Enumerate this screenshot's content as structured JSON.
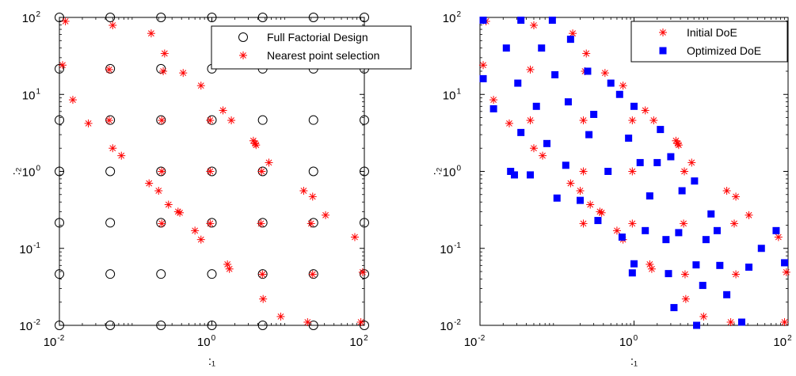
{
  "chart_data": [
    {
      "type": "scatter",
      "xscale": "log",
      "yscale": "log",
      "xlim": [
        0.01,
        100
      ],
      "ylim": [
        0.01,
        100
      ],
      "xlabel": ":₁",
      "ylabel": ":₂",
      "xticks": [
        {
          "base": "10",
          "exp": "-2"
        },
        {
          "base": "10",
          "exp": "0"
        },
        {
          "base": "10",
          "exp": "2"
        }
      ],
      "yticks": [
        {
          "base": "10",
          "exp": "-2"
        },
        {
          "base": "10",
          "exp": "-1"
        },
        {
          "base": "10",
          "exp": "0"
        },
        {
          "base": "10",
          "exp": "1"
        },
        {
          "base": "10",
          "exp": "2"
        }
      ],
      "legend_position": "top-right",
      "series": [
        {
          "name": "Full Factorial Design",
          "marker": "circle",
          "color": "#000000",
          "x": [
            0.01,
            0.0464,
            0.215,
            1.0,
            4.64,
            21.5,
            100
          ],
          "y": [
            0.01,
            0.0464,
            0.215,
            1.0,
            4.64,
            21.5,
            100
          ],
          "grid": true
        },
        {
          "name": "Nearest point selection",
          "marker": "asterisk",
          "color": "#ff0000",
          "points": [
            [
              0.012,
              89
            ],
            [
              0.05,
              79
            ],
            [
              0.16,
              62
            ],
            [
              0.24,
              34
            ],
            [
              0.011,
              24
            ],
            [
              0.045,
              21
            ],
            [
              0.23,
              20
            ],
            [
              0.42,
              19
            ],
            [
              0.72,
              13
            ],
            [
              0.015,
              8.5
            ],
            [
              1.4,
              6.2
            ],
            [
              0.024,
              4.2
            ],
            [
              0.045,
              4.6
            ],
            [
              0.22,
              4.6
            ],
            [
              0.95,
              4.6
            ],
            [
              1.8,
              4.6
            ],
            [
              3.5,
              2.5
            ],
            [
              3.7,
              2.3
            ],
            [
              3.8,
              2.2
            ],
            [
              5.6,
              1.3
            ],
            [
              0.05,
              2.0
            ],
            [
              0.065,
              1.6
            ],
            [
              0.22,
              1.0
            ],
            [
              0.95,
              1.0
            ],
            [
              4.5,
              1.0
            ],
            [
              0.15,
              0.7
            ],
            [
              0.2,
              0.56
            ],
            [
              0.27,
              0.37
            ],
            [
              0.36,
              0.3
            ],
            [
              0.38,
              0.29
            ],
            [
              0.95,
              0.21
            ],
            [
              0.22,
              0.21
            ],
            [
              4.4,
              0.21
            ],
            [
              20,
              0.21
            ],
            [
              16,
              0.56
            ],
            [
              21,
              0.47
            ],
            [
              31,
              0.27
            ],
            [
              0.6,
              0.17
            ],
            [
              0.72,
              0.13
            ],
            [
              1.6,
              0.062
            ],
            [
              1.7,
              0.054
            ],
            [
              4.6,
              0.046
            ],
            [
              21,
              0.046
            ],
            [
              4.7,
              0.022
            ],
            [
              8,
              0.013
            ],
            [
              18,
              0.011
            ],
            [
              90,
              0.011
            ],
            [
              75,
              0.14
            ],
            [
              95,
              0.049
            ]
          ]
        }
      ]
    },
    {
      "type": "scatter",
      "xscale": "log",
      "yscale": "log",
      "xlim": [
        0.01,
        100
      ],
      "ylim": [
        0.01,
        100
      ],
      "xlabel": ":₁",
      "ylabel": ":₂",
      "xticks": [
        {
          "base": "10",
          "exp": "-2"
        },
        {
          "base": "10",
          "exp": "0"
        },
        {
          "base": "10",
          "exp": "2"
        }
      ],
      "yticks": [
        {
          "base": "10",
          "exp": "-2"
        },
        {
          "base": "10",
          "exp": "-1"
        },
        {
          "base": "10",
          "exp": "0"
        },
        {
          "base": "10",
          "exp": "1"
        },
        {
          "base": "10",
          "exp": "2"
        }
      ],
      "legend_position": "top-right",
      "series": [
        {
          "name": "Initial DoE",
          "marker": "asterisk",
          "color": "#ff0000",
          "points": [
            [
              0.012,
              89
            ],
            [
              0.05,
              79
            ],
            [
              0.16,
              62
            ],
            [
              0.24,
              34
            ],
            [
              0.011,
              24
            ],
            [
              0.045,
              21
            ],
            [
              0.23,
              20
            ],
            [
              0.42,
              19
            ],
            [
              0.72,
              13
            ],
            [
              0.015,
              8.5
            ],
            [
              1.4,
              6.2
            ],
            [
              0.024,
              4.2
            ],
            [
              0.045,
              4.6
            ],
            [
              0.22,
              4.6
            ],
            [
              0.95,
              4.6
            ],
            [
              1.8,
              4.6
            ],
            [
              3.5,
              2.5
            ],
            [
              3.7,
              2.3
            ],
            [
              3.8,
              2.2
            ],
            [
              5.6,
              1.3
            ],
            [
              0.05,
              2.0
            ],
            [
              0.065,
              1.6
            ],
            [
              0.22,
              1.0
            ],
            [
              0.95,
              1.0
            ],
            [
              4.5,
              1.0
            ],
            [
              0.15,
              0.7
            ],
            [
              0.2,
              0.56
            ],
            [
              0.27,
              0.37
            ],
            [
              0.36,
              0.3
            ],
            [
              0.38,
              0.29
            ],
            [
              0.95,
              0.21
            ],
            [
              0.22,
              0.21
            ],
            [
              4.4,
              0.21
            ],
            [
              20,
              0.21
            ],
            [
              16,
              0.56
            ],
            [
              21,
              0.47
            ],
            [
              31,
              0.27
            ],
            [
              0.6,
              0.17
            ],
            [
              0.72,
              0.13
            ],
            [
              1.6,
              0.062
            ],
            [
              1.7,
              0.054
            ],
            [
              4.6,
              0.046
            ],
            [
              21,
              0.046
            ],
            [
              4.7,
              0.022
            ],
            [
              8,
              0.013
            ],
            [
              18,
              0.011
            ],
            [
              90,
              0.011
            ],
            [
              75,
              0.14
            ],
            [
              95,
              0.049
            ]
          ]
        },
        {
          "name": "Optimized DoE",
          "marker": "square",
          "color": "#0000ff",
          "points": [
            [
              0.011,
              92
            ],
            [
              0.034,
              92
            ],
            [
              0.087,
              92
            ],
            [
              0.022,
              40
            ],
            [
              0.063,
              40
            ],
            [
              0.15,
              52
            ],
            [
              0.011,
              16
            ],
            [
              0.031,
              14
            ],
            [
              0.094,
              18
            ],
            [
              0.25,
              20
            ],
            [
              0.5,
              14
            ],
            [
              0.65,
              10
            ],
            [
              0.054,
              7
            ],
            [
              0.14,
              8
            ],
            [
              0.3,
              5.5
            ],
            [
              1.0,
              7
            ],
            [
              0.015,
              6.5
            ],
            [
              0.034,
              3.2
            ],
            [
              0.074,
              2.3
            ],
            [
              0.26,
              3
            ],
            [
              0.85,
              2.7
            ],
            [
              2.2,
              3.5
            ],
            [
              2.0,
              1.3
            ],
            [
              0.025,
              1.0
            ],
            [
              0.045,
              0.9
            ],
            [
              0.13,
              1.2
            ],
            [
              0.46,
              1.0
            ],
            [
              1.2,
              1.3
            ],
            [
              3.0,
              1.55
            ],
            [
              0.1,
              0.45
            ],
            [
              0.2,
              0.42
            ],
            [
              1.6,
              0.48
            ],
            [
              4.2,
              0.56
            ],
            [
              0.34,
              0.23
            ],
            [
              0.7,
              0.14
            ],
            [
              1.4,
              0.17
            ],
            [
              3.8,
              0.16
            ],
            [
              10,
              0.28
            ],
            [
              12,
              0.17
            ],
            [
              1.0,
              0.063
            ],
            [
              2.6,
              0.13
            ],
            [
              6.1,
              0.75
            ],
            [
              8.6,
              0.13
            ],
            [
              0.95,
              0.048
            ],
            [
              2.8,
              0.047
            ],
            [
              6.4,
              0.061
            ],
            [
              13,
              0.06
            ],
            [
              31,
              0.057
            ],
            [
              7.8,
              0.033
            ],
            [
              3.3,
              0.017
            ],
            [
              6.5,
              0.01
            ],
            [
              16,
              0.025
            ],
            [
              25,
              0.011
            ],
            [
              70,
              0.17
            ],
            [
              90,
              0.065
            ],
            [
              45,
              0.1
            ],
            [
              0.028,
              0.9
            ]
          ]
        }
      ]
    }
  ]
}
